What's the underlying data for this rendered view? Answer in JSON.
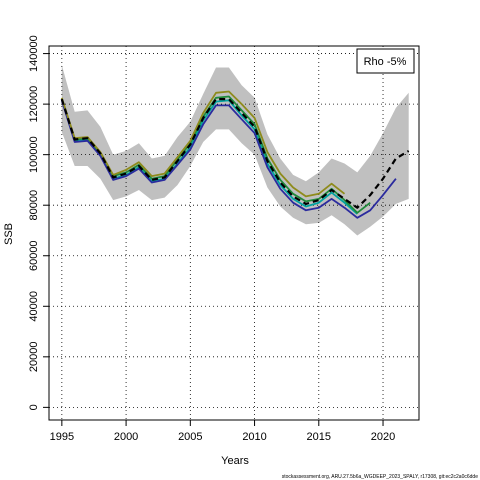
{
  "chart_data": {
    "type": "line",
    "title": "",
    "xlabel": "Years",
    "ylabel": "SSB",
    "xlim": [
      1994.0,
      2022.8
    ],
    "ylim": [
      -5000,
      143000
    ],
    "x_ticks": [
      1995,
      2000,
      2005,
      2010,
      2015,
      2020
    ],
    "y_ticks": [
      0,
      20000,
      40000,
      60000,
      80000,
      100000,
      120000,
      140000
    ],
    "grid": true,
    "legend": {
      "position": "top-right",
      "text": "Rho -5%"
    },
    "confidence_band": {
      "x": [
        1995,
        1996,
        1997,
        1998,
        1999,
        2000,
        2001,
        2002,
        2003,
        2004,
        2005,
        2006,
        2007,
        2008,
        2009,
        2010,
        2011,
        2012,
        2013,
        2014,
        2015,
        2016,
        2017,
        2018,
        2019,
        2020,
        2021,
        2022
      ],
      "upper": [
        135500,
        117000,
        117500,
        111000,
        100000,
        101500,
        104500,
        98500,
        99500,
        107000,
        113000,
        124000,
        134500,
        134500,
        127500,
        122500,
        108000,
        98500,
        92000,
        89500,
        93000,
        98500,
        96500,
        93000,
        99500,
        108500,
        118500,
        124500
      ],
      "lower": [
        109000,
        95500,
        95500,
        90500,
        82000,
        83500,
        86000,
        82000,
        83000,
        88000,
        95500,
        105000,
        110000,
        110000,
        104500,
        100000,
        87000,
        79500,
        75000,
        72500,
        73000,
        76000,
        72500,
        68000,
        71500,
        75500,
        80500,
        82500
      ]
    },
    "series": [
      {
        "color": "#000000",
        "dashed": true,
        "x": [
          1995,
          1996,
          1997,
          1998,
          1999,
          2000,
          2001,
          2002,
          2003,
          2004,
          2005,
          2006,
          2007,
          2008,
          2009,
          2010,
          2011,
          2012,
          2013,
          2014,
          2015,
          2016,
          2017,
          2018,
          2019,
          2020,
          2021,
          2022
        ],
        "values": [
          122000,
          106000,
          106500,
          100500,
          91000,
          92500,
          95500,
          90000,
          91000,
          97500,
          104000,
          114500,
          122000,
          122000,
          116500,
          111000,
          97500,
          89000,
          83500,
          80500,
          82000,
          86000,
          82500,
          79000,
          84000,
          90500,
          98500,
          101500
        ]
      },
      {
        "color": "#8e8b1c",
        "dashed": false,
        "x": [
          1995,
          1996,
          1997,
          1998,
          1999,
          2000,
          2001,
          2002,
          2003,
          2004,
          2005,
          2006,
          2007,
          2008,
          2009,
          2010,
          2011,
          2012,
          2013,
          2014,
          2015,
          2016,
          2017
        ],
        "values": [
          122500,
          106500,
          107000,
          101000,
          92000,
          94000,
          97000,
          91500,
          92500,
          99000,
          105500,
          116500,
          124500,
          125000,
          120000,
          114500,
          101000,
          92500,
          87000,
          83500,
          84500,
          88500,
          84500
        ]
      },
      {
        "color": "#00a3a0",
        "dashed": false,
        "x": [
          1995,
          1996,
          1997,
          1998,
          1999,
          2000,
          2001,
          2002,
          2003,
          2004,
          2005,
          2006,
          2007,
          2008,
          2009,
          2010,
          2011,
          2012,
          2013,
          2014,
          2015,
          2016,
          2017,
          2018
        ],
        "values": [
          122000,
          105500,
          106000,
          100000,
          90500,
          92000,
          95000,
          89500,
          90500,
          96500,
          103000,
          113500,
          121000,
          121500,
          115500,
          110000,
          96500,
          88000,
          82500,
          79500,
          81000,
          85000,
          81000,
          76500
        ]
      },
      {
        "color": "#1f8a3a",
        "dashed": false,
        "x": [
          1995,
          1996,
          1997,
          1998,
          1999,
          2000,
          2001,
          2002,
          2003,
          2004,
          2005,
          2006,
          2007,
          2008,
          2009,
          2010,
          2011,
          2012,
          2013,
          2014,
          2015,
          2016,
          2017,
          2018,
          2019
        ],
        "values": [
          122000,
          106000,
          106500,
          100500,
          91500,
          93000,
          96000,
          90500,
          91500,
          98000,
          104500,
          115000,
          122500,
          123000,
          117500,
          112000,
          98500,
          90000,
          84500,
          81500,
          82500,
          86500,
          82000,
          77000,
          81000
        ]
      },
      {
        "color": "#2b2b9e",
        "dashed": false,
        "x": [
          1995,
          1996,
          1997,
          1998,
          1999,
          2000,
          2001,
          2002,
          2003,
          2004,
          2005,
          2006,
          2007,
          2008,
          2009,
          2010,
          2011,
          2012,
          2013,
          2014,
          2015,
          2016,
          2017,
          2018,
          2019,
          2020,
          2021
        ],
        "values": [
          121500,
          105000,
          105500,
          99500,
          90000,
          91500,
          94500,
          89000,
          90000,
          96000,
          102000,
          112000,
          119500,
          119500,
          114000,
          108500,
          95000,
          86500,
          81000,
          78000,
          79000,
          82500,
          79000,
          75000,
          78000,
          84000,
          90500
        ]
      }
    ]
  },
  "footer": "stockassessment.org, ARU.27.5b6a_WGDEEP_2023_SPALY, r17308, git:ec2c2a0c6dde"
}
